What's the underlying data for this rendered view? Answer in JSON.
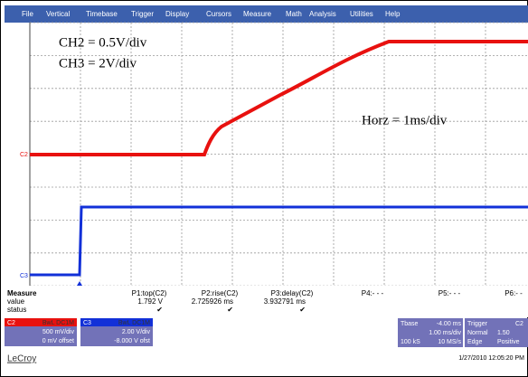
{
  "menu": [
    "File",
    "Vertical",
    "Timebase",
    "Trigger",
    "Display",
    "Cursors",
    "Measure",
    "Math",
    "Analysis",
    "Utilities",
    "Help"
  ],
  "annotations": {
    "ch2": "CH2 = 0.5V/div",
    "ch3": "CH3 = 2V/div",
    "horz": "Horz = 1ms/div"
  },
  "trace_labels": {
    "c2": "C2",
    "c3": "C3"
  },
  "measure": {
    "header": [
      "Measure",
      "P1:top(C2)",
      "P2:rise(C2)",
      "P3:delay(C2)",
      "P4:- - -",
      "P5:- - -",
      "P6:- -"
    ],
    "value": [
      "value",
      "1.792 V",
      "2.725926 ms",
      "3.932791 ms"
    ],
    "status": [
      "status",
      "✔",
      "✔",
      "✔"
    ]
  },
  "channels": [
    {
      "name": "C2",
      "mode": "BwL DC1M",
      "scale": "500 mV/div",
      "offset": "0 mV offset"
    },
    {
      "name": "C3",
      "mode": "BwL DC1M",
      "scale": "2.00 V/div",
      "offset": "-8.000 V ofst"
    }
  ],
  "timebase": {
    "label": "Tbase",
    "delay": "-4.00 ms",
    "scale": "1.00 ms/div",
    "samples": "100 kS",
    "rate": "10 MS/s"
  },
  "trigger": {
    "label": "Trigger",
    "source": "C2",
    "mode": "Normal",
    "level": "1.50",
    "type": "Edge",
    "slope": "Positive"
  },
  "brand": "LeCroy",
  "timestamp": "1/27/2010 12:05:20 PM"
}
